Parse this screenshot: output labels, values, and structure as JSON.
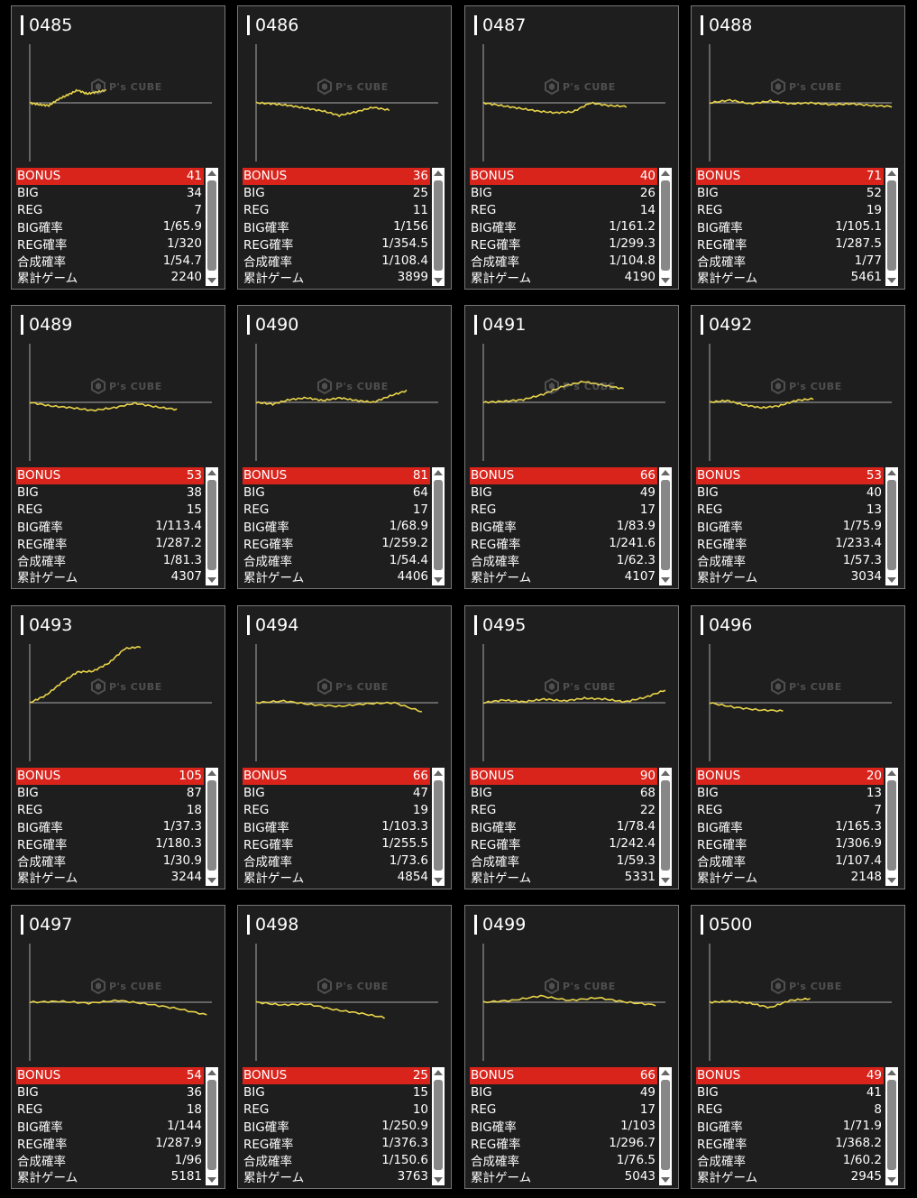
{
  "labels": {
    "bonus": "BONUS",
    "big": "BIG",
    "reg": "REG",
    "big_rate": "BIG確率",
    "reg_rate": "REG確率",
    "total_rate": "合成確率",
    "games": "累計ゲーム"
  },
  "watermark": "P's CUBE",
  "colors": {
    "line": "#e8d44a",
    "bonus_row": "#d9241c",
    "card_bg": "#1e1e1e"
  },
  "machines": [
    {
      "id": "0485",
      "bonus": "41",
      "big": "34",
      "reg": "7",
      "big_rate": "1/65.9",
      "reg_rate": "1/320",
      "total_rate": "1/54.7",
      "games": "2240",
      "trend": [
        0,
        -2,
        -3,
        4,
        9,
        14,
        10,
        12,
        14
      ]
    },
    {
      "id": "0486",
      "bonus": "36",
      "big": "25",
      "reg": "11",
      "big_rate": "1/156",
      "reg_rate": "1/354.5",
      "total_rate": "1/108.4",
      "games": "3899",
      "trend": [
        0,
        -1,
        -3,
        -6,
        -9,
        -14,
        -10,
        -5,
        -8
      ]
    },
    {
      "id": "0487",
      "bonus": "40",
      "big": "26",
      "reg": "14",
      "big_rate": "1/161.2",
      "reg_rate": "1/299.3",
      "total_rate": "1/104.8",
      "games": "4190",
      "trend": [
        0,
        -3,
        -6,
        -9,
        -11,
        -10,
        0,
        -3,
        -4
      ]
    },
    {
      "id": "0488",
      "bonus": "71",
      "big": "52",
      "reg": "19",
      "big_rate": "1/105.1",
      "reg_rate": "1/287.5",
      "total_rate": "1/77",
      "games": "5461",
      "trend": [
        0,
        3,
        -1,
        2,
        -1,
        0,
        -2,
        -1,
        -3,
        -4
      ]
    },
    {
      "id": "0489",
      "bonus": "53",
      "big": "38",
      "reg": "15",
      "big_rate": "1/113.4",
      "reg_rate": "1/287.2",
      "total_rate": "1/81.3",
      "games": "4307",
      "trend": [
        0,
        -4,
        -6,
        -9,
        -6,
        -1,
        -5,
        -8
      ]
    },
    {
      "id": "0490",
      "bonus": "81",
      "big": "64",
      "reg": "17",
      "big_rate": "1/68.9",
      "reg_rate": "1/259.2",
      "total_rate": "1/54.4",
      "games": "4406",
      "trend": [
        0,
        -2,
        3,
        5,
        2,
        5,
        2,
        0,
        7,
        13
      ]
    },
    {
      "id": "0491",
      "bonus": "66",
      "big": "49",
      "reg": "17",
      "big_rate": "1/83.9",
      "reg_rate": "1/241.6",
      "total_rate": "1/62.3",
      "games": "4107",
      "trend": [
        0,
        1,
        3,
        9,
        18,
        23,
        19,
        15
      ]
    },
    {
      "id": "0492",
      "bonus": "53",
      "big": "40",
      "reg": "13",
      "big_rate": "1/75.9",
      "reg_rate": "1/233.4",
      "total_rate": "1/57.3",
      "games": "3034",
      "trend": [
        0,
        2,
        -3,
        -6,
        -4,
        2,
        4
      ]
    },
    {
      "id": "0493",
      "bonus": "105",
      "big": "87",
      "reg": "18",
      "big_rate": "1/37.3",
      "reg_rate": "1/180.3",
      "total_rate": "1/30.9",
      "games": "3244",
      "trend": [
        0,
        8,
        22,
        34,
        35,
        44,
        60,
        62
      ]
    },
    {
      "id": "0494",
      "bonus": "66",
      "big": "47",
      "reg": "19",
      "big_rate": "1/103.3",
      "reg_rate": "1/255.5",
      "total_rate": "1/73.6",
      "games": "4854",
      "trend": [
        0,
        2,
        -2,
        -4,
        -1,
        0,
        -10
      ]
    },
    {
      "id": "0495",
      "bonus": "90",
      "big": "68",
      "reg": "22",
      "big_rate": "1/78.4",
      "reg_rate": "1/242.4",
      "total_rate": "1/59.3",
      "games": "5331",
      "trend": [
        0,
        3,
        1,
        4,
        2,
        5,
        4,
        1,
        6,
        14
      ]
    },
    {
      "id": "0496",
      "bonus": "20",
      "big": "13",
      "reg": "7",
      "big_rate": "1/165.3",
      "reg_rate": "1/306.9",
      "total_rate": "1/107.4",
      "games": "2148",
      "trend": [
        0,
        -5,
        -8,
        -9
      ]
    },
    {
      "id": "0497",
      "bonus": "54",
      "big": "36",
      "reg": "18",
      "big_rate": "1/144",
      "reg_rate": "1/287.9",
      "total_rate": "1/96",
      "games": "5181",
      "trend": [
        0,
        1,
        -1,
        2,
        -2,
        -7,
        -14
      ]
    },
    {
      "id": "0498",
      "bonus": "25",
      "big": "15",
      "reg": "10",
      "big_rate": "1/250.9",
      "reg_rate": "1/376.3",
      "total_rate": "1/150.6",
      "games": "3763",
      "trend": [
        0,
        -3,
        -2,
        -8,
        -12,
        -17
      ]
    },
    {
      "id": "0499",
      "bonus": "66",
      "big": "49",
      "reg": "17",
      "big_rate": "1/103",
      "reg_rate": "1/296.7",
      "total_rate": "1/76.5",
      "games": "5043",
      "trend": [
        0,
        2,
        7,
        2,
        5,
        0,
        -3
      ]
    },
    {
      "id": "0500",
      "bonus": "49",
      "big": "41",
      "reg": "8",
      "big_rate": "1/71.9",
      "reg_rate": "1/368.2",
      "total_rate": "1/60.2",
      "games": "2945",
      "trend": [
        0,
        1,
        -1,
        -6,
        2,
        4
      ]
    }
  ]
}
